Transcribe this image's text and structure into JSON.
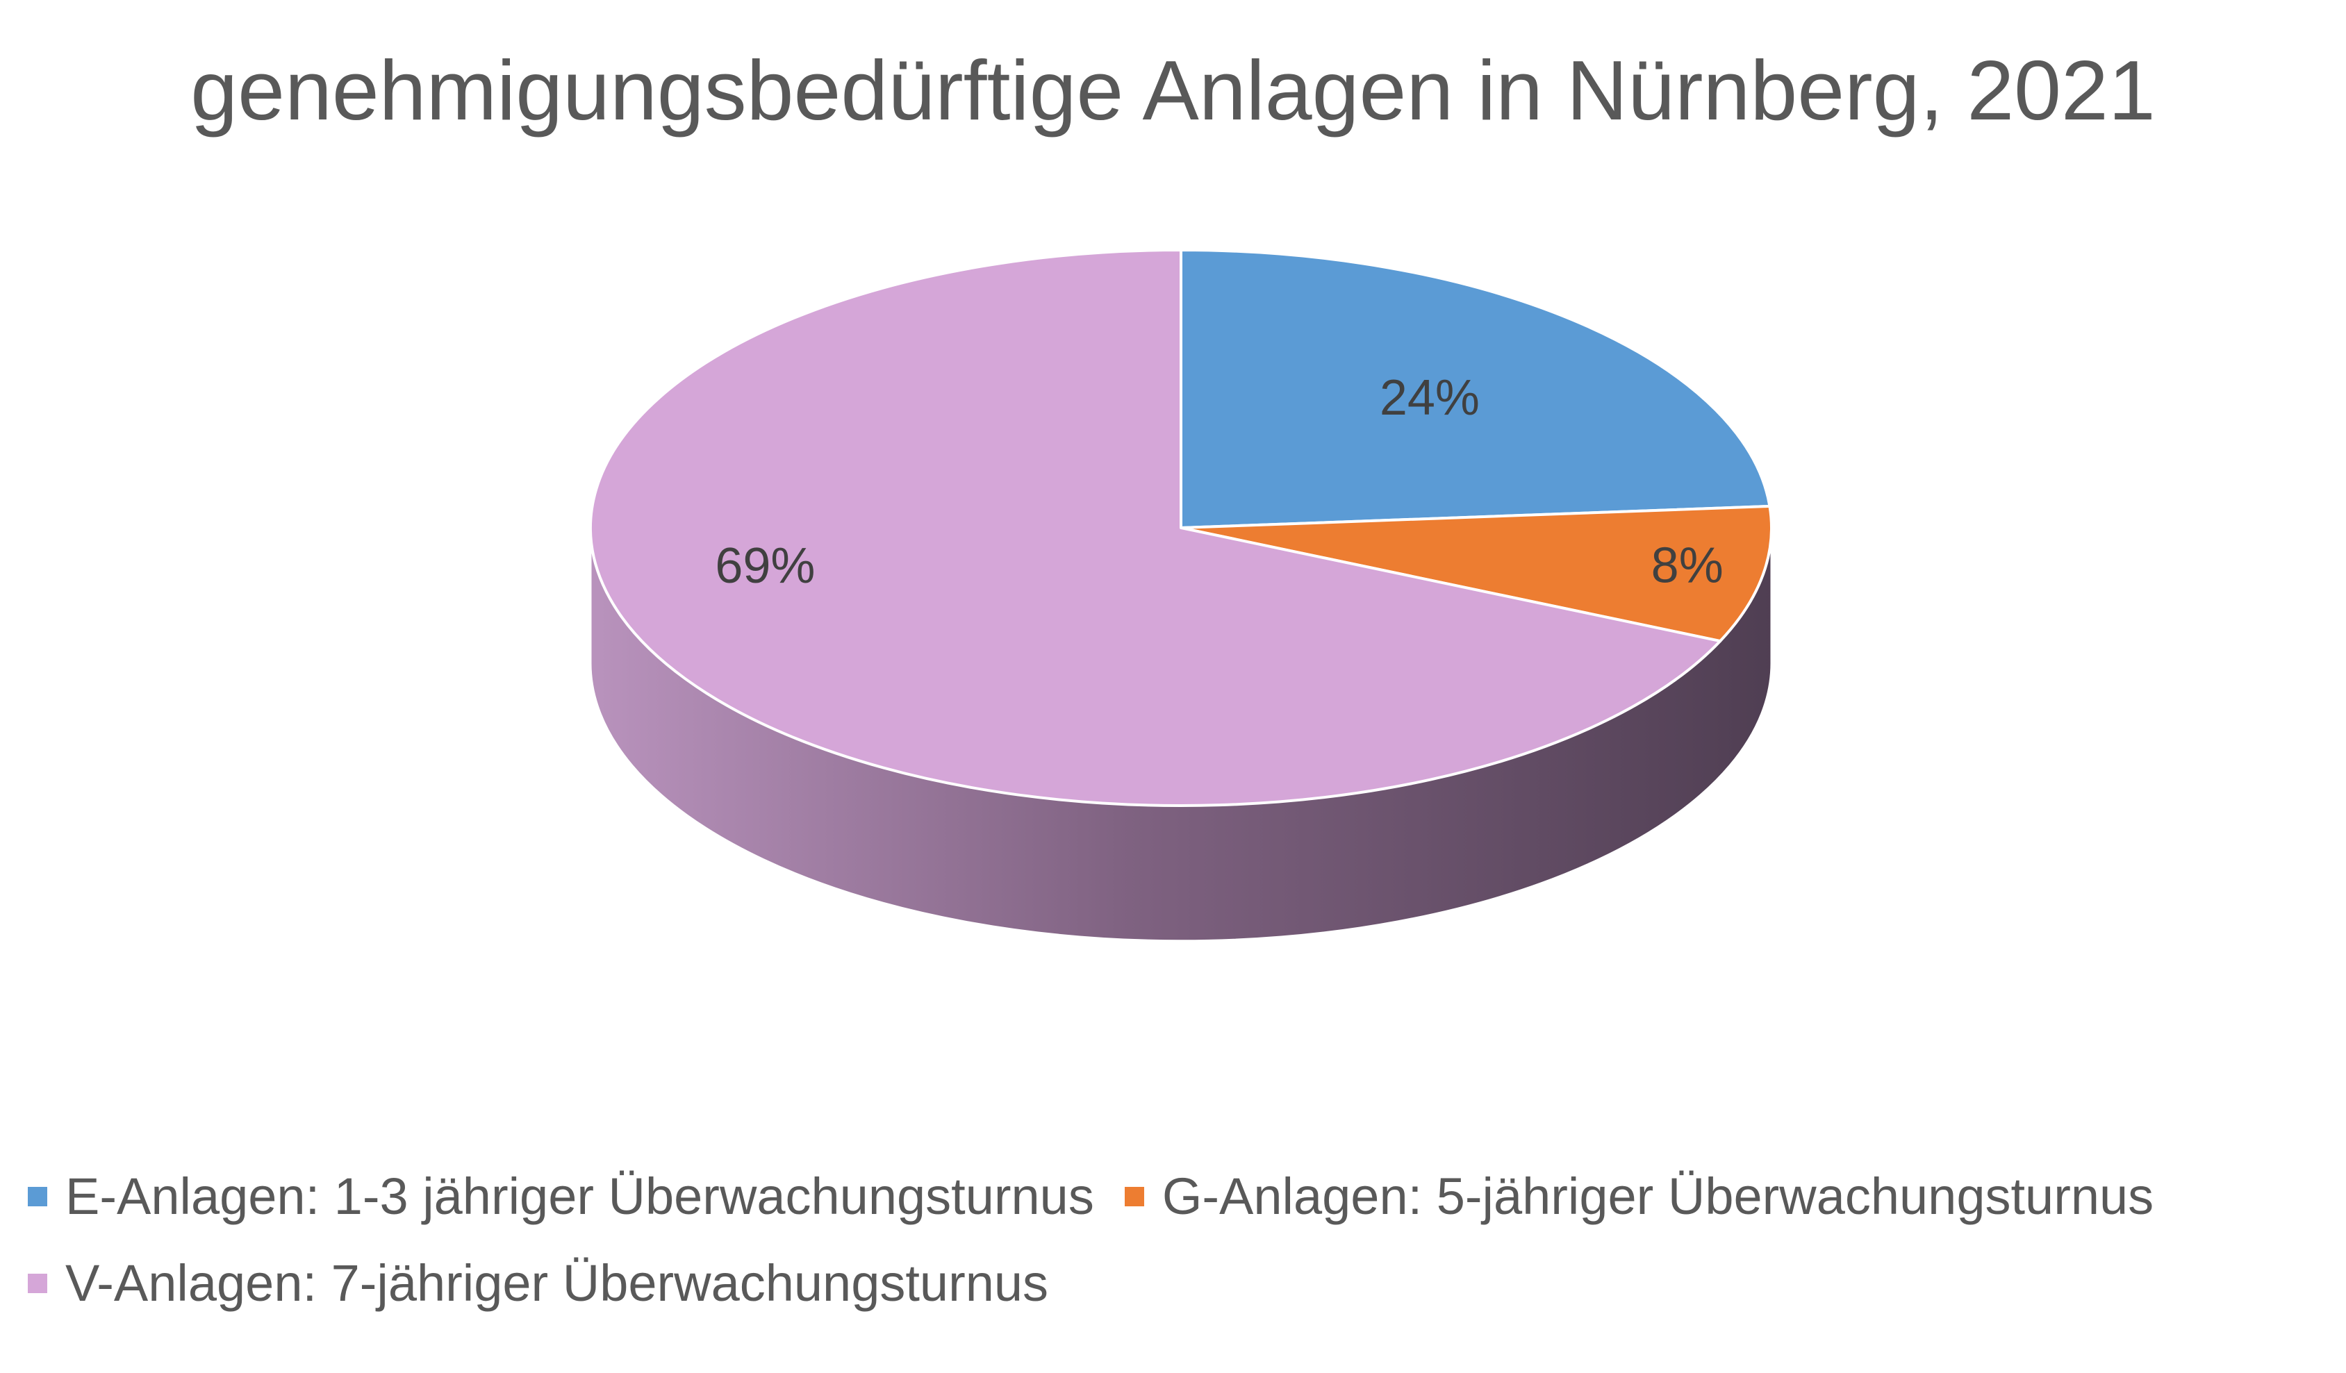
{
  "chart_data": {
    "type": "pie",
    "title": "genehmigungsbedürftige Anlagen in Nürnberg, 2021",
    "categories": [
      "E-Anlagen: 1-3 jähriger Überwachungsturnus",
      "G-Anlagen: 5-jähriger Überwachungsturnus",
      "V-Anlagen: 7-jähriger Überwachungsturnus"
    ],
    "values": [
      24,
      8,
      69
    ],
    "data_labels": [
      "24%",
      "8%",
      "69%"
    ],
    "colors": [
      "#5b9bd5",
      "#ed7d31",
      "#d5a6d8"
    ],
    "style": "3d",
    "legend_position": "bottom"
  }
}
